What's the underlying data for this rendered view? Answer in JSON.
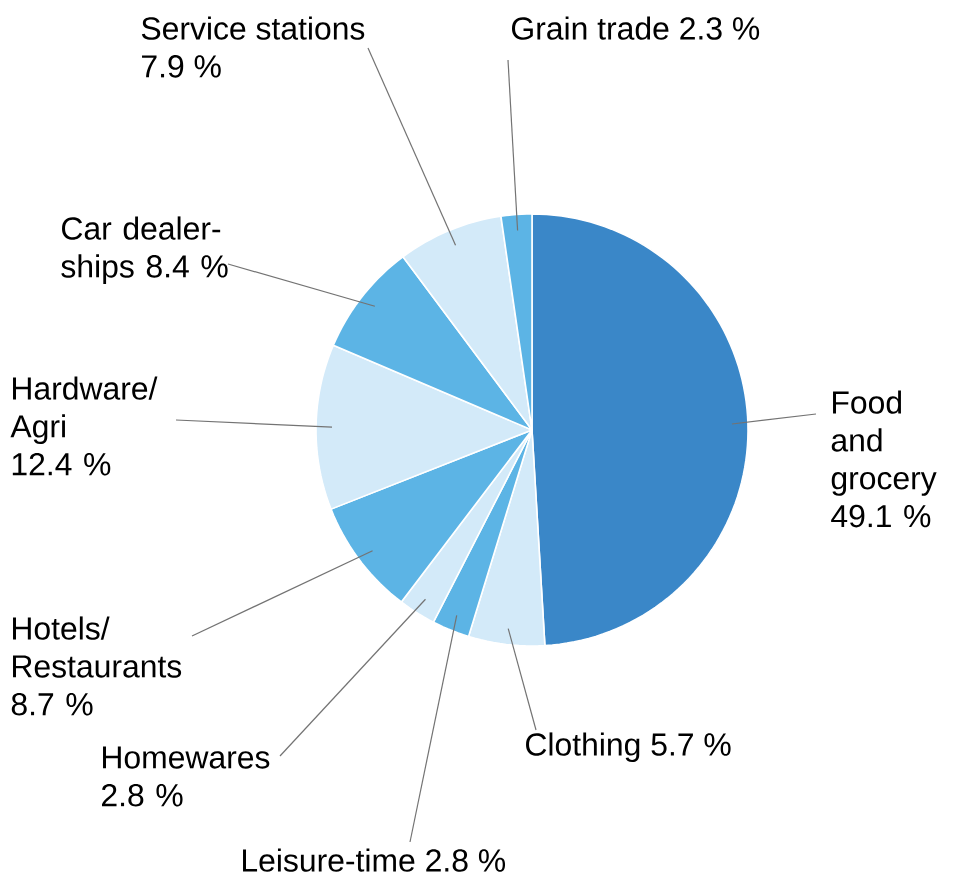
{
  "chart_data": {
    "type": "pie",
    "categories": [
      "Food and grocery",
      "Clothing",
      "Leisure-time",
      "Homewares",
      "Hotels/ Restaurants",
      "Hardware/ Agri",
      "Car dealer-ships",
      "Service stations",
      "Grain trade"
    ],
    "values": [
      49.1,
      5.7,
      2.8,
      2.8,
      8.7,
      12.4,
      8.4,
      7.9,
      2.3
    ],
    "colors": [
      "#3a87c8",
      "#d3eaf9",
      "#5cb4e5",
      "#d3eaf9",
      "#5cb4e5",
      "#d3eaf9",
      "#5cb4e5",
      "#d3eaf9",
      "#5cb4e5"
    ],
    "value_labels": [
      "49.1 %",
      "5.7 %",
      "2.8 %",
      "2.8 %",
      "8.7 %",
      "12.4 %",
      "8.4 %",
      "7.9 %",
      "2.3 %"
    ]
  }
}
